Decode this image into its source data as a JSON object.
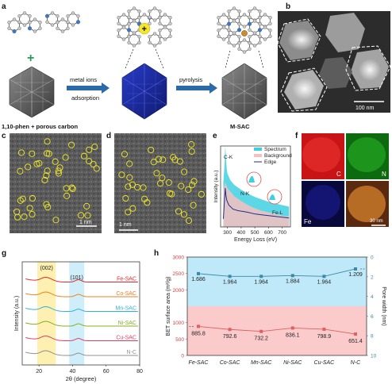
{
  "panel_labels": {
    "a": "a",
    "b": "b",
    "c": "c",
    "d": "d",
    "e": "e",
    "f": "f",
    "g": "g",
    "h": "h"
  },
  "panel_a": {
    "label_left": "1,10-phen + porous carbon",
    "arrow1_line1": "metal ions",
    "arrow1_line2": "adsorption",
    "arrow2_label": "pyrolysis",
    "label_right": "M-SAC",
    "plus_sign": "+",
    "colors": {
      "carbon": "#9a9a9a",
      "nitrogen": "#3a78c9",
      "metal_ion": "#f5e62a",
      "metal_atom": "#d08a2a",
      "arrow": "#2a6aa8",
      "plus": "#2a9a5a"
    }
  },
  "panel_b": {
    "scale_bar": "100 nm"
  },
  "panel_c": {
    "scale_bar": "1 nm"
  },
  "panel_d": {
    "scale_bar": "1 nm"
  },
  "panel_e": {
    "peak_labels": {
      "ck": "C-K",
      "nk": "N-K",
      "fel": "Fe-L"
    },
    "legend": [
      "Spectrum",
      "Background",
      "Edge"
    ],
    "colors": {
      "spectrum": "#3fd0e0",
      "background": "#f7c0c0",
      "edge": "#1d2f8a"
    }
  },
  "panel_f": {
    "maps": [
      "C",
      "N",
      "Fe",
      ""
    ],
    "scale_bar": "30 nm",
    "colors": {
      "C": "#d81818",
      "N": "#18a018",
      "Fe": "#1818b0"
    }
  },
  "chart_data": [
    {
      "type": "line",
      "panel": "e",
      "xlabel": "Energy Loss (eV)",
      "ylabel": "Intensity (a.u.)",
      "xlim": [
        250,
        760
      ],
      "xticks": [
        300,
        400,
        500,
        600,
        700
      ],
      "series": [
        {
          "name": "Spectrum",
          "x": [
            270,
            280,
            284,
            288,
            292,
            296,
            300,
            320,
            350,
            400,
            450,
            500,
            550,
            600,
            650,
            700,
            750
          ],
          "y": [
            0.55,
            0.8,
            1.0,
            0.9,
            0.78,
            0.7,
            0.66,
            0.58,
            0.52,
            0.46,
            0.41,
            0.37,
            0.34,
            0.31,
            0.29,
            0.27,
            0.25
          ]
        },
        {
          "name": "Background",
          "x": [
            270,
            284,
            300,
            350,
            400,
            450,
            500,
            550,
            600,
            650,
            700,
            750
          ],
          "y": [
            0.45,
            0.55,
            0.48,
            0.38,
            0.32,
            0.27,
            0.23,
            0.2,
            0.18,
            0.16,
            0.14,
            0.13
          ]
        },
        {
          "name": "Edge",
          "x": [
            270,
            284,
            288,
            295,
            310,
            340,
            380,
            420,
            450,
            500,
            550,
            600,
            650,
            700,
            750
          ],
          "y": [
            0.1,
            0.48,
            0.4,
            0.33,
            0.27,
            0.22,
            0.2,
            0.19,
            0.18,
            0.16,
            0.15,
            0.14,
            0.13,
            0.12,
            0.11
          ]
        }
      ]
    },
    {
      "type": "line",
      "panel": "g",
      "xlabel": "2θ (degree)",
      "ylabel": "Intensity (a.u.)",
      "xlim": [
        10,
        80
      ],
      "xticks": [
        20,
        40,
        60,
        80
      ],
      "peaks": [
        "(002)",
        "(101)"
      ],
      "bands": [
        {
          "x": [
            19,
            30
          ],
          "color": "#fdf0b0"
        },
        {
          "x": [
            38,
            47
          ],
          "color": "#cfeefa"
        }
      ],
      "series": [
        {
          "name": "Fe-SAC",
          "color": "#e02a2a",
          "offset": 5
        },
        {
          "name": "Co-SAC",
          "color": "#f08020",
          "offset": 4
        },
        {
          "name": "Mn-SAC",
          "color": "#30b0e0",
          "offset": 3
        },
        {
          "name": "Ni-SAC",
          "color": "#80b020",
          "offset": 2
        },
        {
          "name": "Cu-SAC",
          "color": "#e04060",
          "offset": 1
        },
        {
          "name": "N-C",
          "color": "#909090",
          "offset": 0
        }
      ]
    },
    {
      "type": "line",
      "panel": "h",
      "categories": [
        "Fe-SAC",
        "Co-SAC",
        "Mn-SAC",
        "Ni-SAC",
        "Cu-SAC",
        "N-C"
      ],
      "ylabel_left": "BET surface area (m²/g)",
      "ylabel_right": "Pore width (nm)",
      "ylim_left": [
        0,
        3000
      ],
      "yticks_left": [
        0,
        500,
        1000,
        2000,
        2500,
        3000
      ],
      "ylim_right": [
        10,
        0
      ],
      "yticks_right": [
        0,
        2,
        4,
        6,
        8,
        10
      ],
      "series": [
        {
          "name": "BET surface area",
          "axis": "left",
          "color": "#e06060",
          "values": [
            885.8,
            792.6,
            732.2,
            836.1,
            798.9,
            651.4
          ],
          "labels": [
            "885.8",
            "792.6",
            "732.2",
            "836.1",
            "798.9",
            "651.4"
          ]
        },
        {
          "name": "Pore width",
          "axis": "right",
          "color": "#3a8aa8",
          "values": [
            1.686,
            1.964,
            1.964,
            1.884,
            1.964,
            1.209
          ],
          "labels": [
            "1.686",
            "1.964",
            "1.964",
            "1.884",
            "1.964",
            "1.209"
          ]
        }
      ],
      "bg_colors": {
        "top": "#bfe9f8",
        "bottom": "#fbcaca"
      }
    }
  ]
}
